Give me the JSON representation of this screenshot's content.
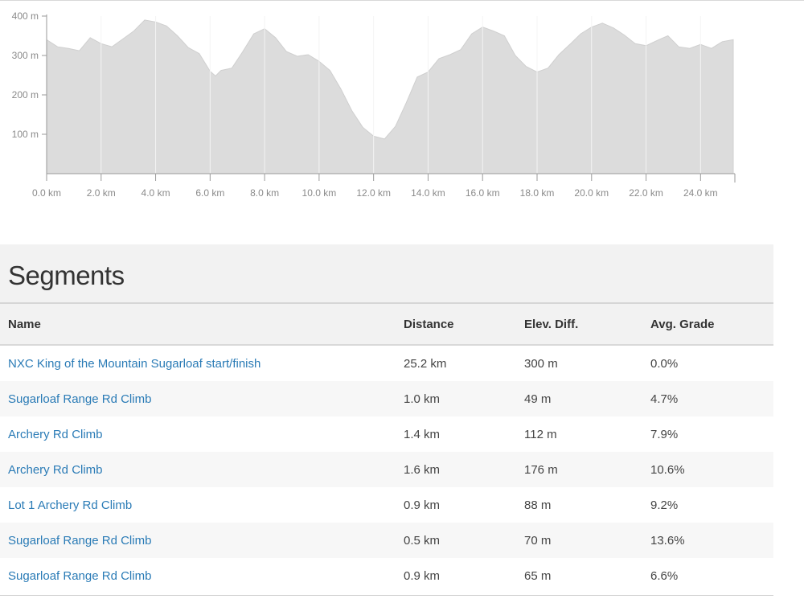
{
  "chart_data": {
    "type": "area",
    "title": "",
    "xlabel": "",
    "ylabel": "",
    "xlim": [
      0,
      25.2
    ],
    "ylim": [
      0,
      400
    ],
    "x_ticks": [
      "0.0 km",
      "2.0 km",
      "4.0 km",
      "6.0 km",
      "8.0 km",
      "10.0 km",
      "12.0 km",
      "14.0 km",
      "16.0 km",
      "18.0 km",
      "20.0 km",
      "22.0 km",
      "24.0 km"
    ],
    "y_ticks": [
      "100 m",
      "200 m",
      "300 m",
      "400 m"
    ],
    "grid": "vertical",
    "fill_color": "#dcdcdc",
    "x": [
      0.0,
      0.4,
      0.8,
      1.2,
      1.6,
      2.0,
      2.4,
      2.8,
      3.2,
      3.6,
      4.0,
      4.4,
      4.8,
      5.2,
      5.6,
      6.0,
      6.2,
      6.4,
      6.8,
      7.2,
      7.6,
      8.0,
      8.4,
      8.8,
      9.2,
      9.6,
      10.0,
      10.4,
      10.8,
      11.2,
      11.6,
      12.0,
      12.4,
      12.8,
      13.2,
      13.6,
      14.0,
      14.4,
      14.8,
      15.2,
      15.6,
      16.0,
      16.4,
      16.8,
      17.2,
      17.6,
      18.0,
      18.4,
      18.8,
      19.2,
      19.6,
      20.0,
      20.4,
      20.8,
      21.2,
      21.6,
      22.0,
      22.4,
      22.8,
      23.2,
      23.6,
      24.0,
      24.4,
      24.8,
      25.2
    ],
    "y": [
      340,
      322,
      318,
      312,
      345,
      330,
      322,
      342,
      362,
      390,
      385,
      375,
      350,
      320,
      305,
      260,
      248,
      262,
      268,
      310,
      355,
      368,
      345,
      310,
      298,
      302,
      285,
      262,
      215,
      160,
      118,
      95,
      88,
      120,
      180,
      245,
      258,
      292,
      302,
      315,
      355,
      372,
      362,
      350,
      300,
      272,
      258,
      268,
      302,
      328,
      355,
      372,
      382,
      370,
      352,
      330,
      325,
      338,
      350,
      322,
      318,
      328,
      318,
      335,
      340
    ]
  },
  "segments": {
    "title": "Segments",
    "columns": [
      "Name",
      "Distance",
      "Elev. Diff.",
      "Avg. Grade"
    ],
    "rows": [
      {
        "name": "NXC King of the Mountain Sugarloaf start/finish",
        "distance": "25.2 km",
        "elev_diff": "300 m",
        "grade": "0.0%"
      },
      {
        "name": "Sugarloaf Range Rd Climb",
        "distance": "1.0 km",
        "elev_diff": "49 m",
        "grade": "4.7%"
      },
      {
        "name": "Archery Rd Climb",
        "distance": "1.4 km",
        "elev_diff": "112 m",
        "grade": "7.9%"
      },
      {
        "name": "Archery Rd Climb",
        "distance": "1.6 km",
        "elev_diff": "176 m",
        "grade": "10.6%"
      },
      {
        "name": "Lot 1 Archery Rd Climb",
        "distance": "0.9 km",
        "elev_diff": "88 m",
        "grade": "9.2%"
      },
      {
        "name": "Sugarloaf Range Rd Climb",
        "distance": "0.5 km",
        "elev_diff": "70 m",
        "grade": "13.6%"
      },
      {
        "name": "Sugarloaf Range Rd Climb",
        "distance": "0.9 km",
        "elev_diff": "65 m",
        "grade": "6.6%"
      }
    ]
  },
  "colors": {
    "link": "#2a7bb6",
    "area_fill": "#dcdcdc",
    "header_bg": "#f2f2f2"
  }
}
